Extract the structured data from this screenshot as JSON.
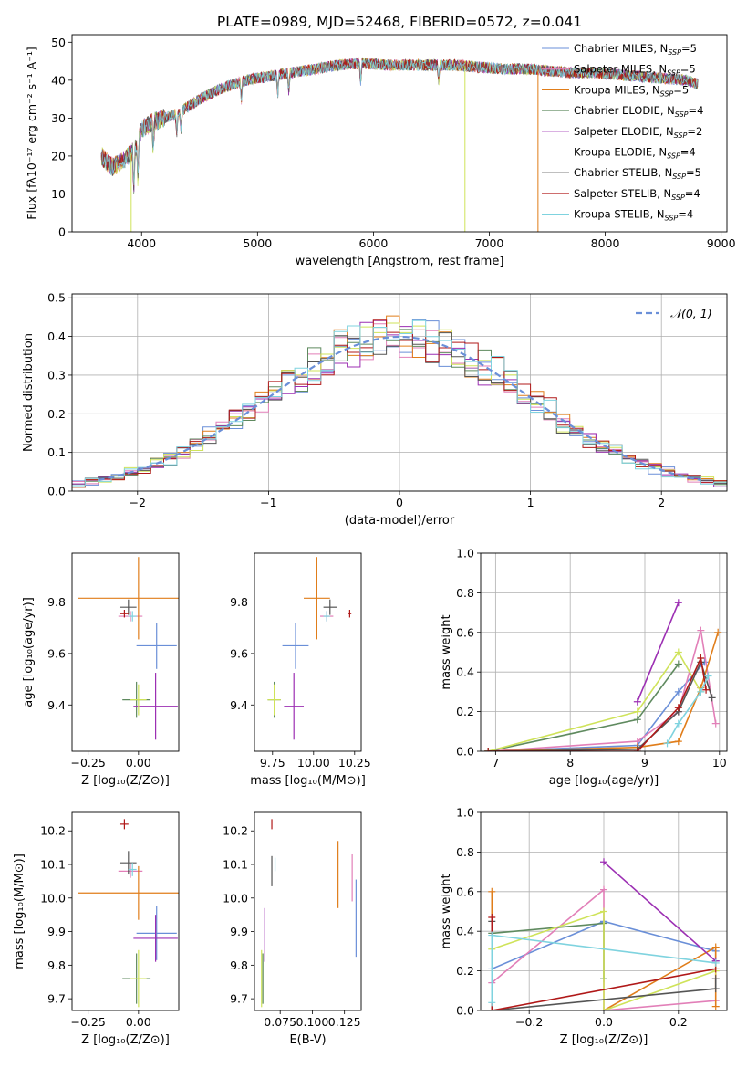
{
  "figure_title": "PLATE=0989, MJD=52468, FIBERID=0572, z=0.041",
  "colors": {
    "chabrier_miles": "#6a8fd8",
    "salpeter_miles": "#e27fb8",
    "kroupa_miles": "#e07d1a",
    "chabrier_elodie": "#5f8a5f",
    "salpeter_elodie": "#9c2fb3",
    "kroupa_elodie": "#cfe35a",
    "chabrier_stelib": "#555555",
    "salpeter_stelib": "#b01818",
    "kroupa_stelib": "#7fd3df",
    "normal": "#6a8fd8",
    "grid": "#b0b0b0"
  },
  "chart_data": [
    {
      "id": "spectrum",
      "type": "line",
      "xlabel": "wavelength [Angstrom, rest frame]",
      "ylabel": "Flux [fλ10⁻¹⁷ erg cm⁻² s⁻¹ A⁻¹]",
      "xlim": [
        3400,
        9050
      ],
      "ylim": [
        0,
        52
      ],
      "xticks": [
        4000,
        5000,
        6000,
        7000,
        8000,
        9000
      ],
      "yticks": [
        0,
        10,
        20,
        30,
        40,
        50
      ],
      "grid": false,
      "legend_loc": "upper right",
      "legend": [
        {
          "key": "chabrier_miles",
          "label": "Chabrier MILES, N",
          "sub": "SSP",
          "suffix": "=5"
        },
        {
          "key": "salpeter_miles",
          "label": "Salpeter MILES, N",
          "sub": "SSP",
          "suffix": "=5"
        },
        {
          "key": "kroupa_miles",
          "label": "Kroupa MILES, N",
          "sub": "SSP",
          "suffix": "=5"
        },
        {
          "key": "chabrier_elodie",
          "label": "Chabrier ELODIE, N",
          "sub": "SSP",
          "suffix": "=4"
        },
        {
          "key": "salpeter_elodie",
          "label": "Salpeter ELODIE, N",
          "sub": "SSP",
          "suffix": "=2"
        },
        {
          "key": "kroupa_elodie",
          "label": "Kroupa ELODIE, N",
          "sub": "SSP",
          "suffix": "=4"
        },
        {
          "key": "chabrier_stelib",
          "label": "Chabrier STELIB, N",
          "sub": "SSP",
          "suffix": "=5"
        },
        {
          "key": "salpeter_stelib",
          "label": "Salpeter STELIB, N",
          "sub": "SSP",
          "suffix": "=4"
        },
        {
          "key": "kroupa_stelib",
          "label": "Kroupa STELIB, N",
          "sub": "SSP",
          "suffix": "=4"
        }
      ],
      "continuum": {
        "x": [
          3650,
          3750,
          3850,
          3950,
          4000,
          4100,
          4200,
          4300,
          4400,
          4500,
          4700,
          4900,
          5100,
          5300,
          5500,
          5700,
          5900,
          6100,
          6300,
          6500,
          6700,
          6900,
          7100,
          7300,
          7500,
          7700,
          7900,
          8100,
          8300,
          8500,
          8700,
          8800
        ],
        "y": [
          20,
          17,
          19,
          22,
          27,
          29,
          30,
          31,
          33,
          35,
          38,
          40,
          41,
          42,
          43,
          44,
          44.5,
          44,
          44,
          44,
          44,
          43.5,
          43,
          43,
          42.5,
          42,
          42,
          41.5,
          41,
          40.5,
          40,
          39
        ]
      },
      "dropouts": [
        {
          "key": "kroupa_elodie",
          "x": 3910,
          "to": 0
        },
        {
          "key": "kroupa_elodie",
          "x": 6790,
          "to": 0
        },
        {
          "key": "kroupa_miles",
          "x": 7420,
          "to": 0
        }
      ]
    },
    {
      "id": "residuals",
      "type": "line",
      "xlabel": "(data-model)/error",
      "ylabel": "Normed distribution",
      "xlim": [
        -2.5,
        2.5
      ],
      "ylim": [
        0,
        0.51
      ],
      "xticks": [
        -2,
        -1,
        0,
        1,
        2
      ],
      "xticklabels": [
        "−2",
        "−1",
        "0",
        "1",
        "2"
      ],
      "yticks": [
        0,
        0.1,
        0.2,
        0.3,
        0.4,
        0.5
      ],
      "yticklabels": [
        "0.0",
        "0.1",
        "0.2",
        "0.3",
        "0.4",
        "0.5"
      ],
      "grid": true,
      "legend_loc": "upper right",
      "legend_label": "𝒩(0, 1)",
      "bin_width": 0.1,
      "n_series": 9
    },
    {
      "id": "z_age",
      "type": "scatter",
      "xlabel": "Z [log₁₀(Z/Z⊙)]",
      "ylabel": "age  [log₁₀(age/yr)]",
      "xlim": [
        -0.33,
        0.2
      ],
      "ylim": [
        9.22,
        9.99
      ],
      "xticks": [
        -0.25,
        0.0
      ],
      "xticklabels": [
        "−0.25",
        "0.00"
      ],
      "yticks": [
        9.4,
        9.6,
        9.8
      ],
      "yticklabels": [
        "9.4",
        "9.6",
        "9.8"
      ],
      "points": [
        {
          "key": "chabrier_miles",
          "x": 0.09,
          "y": 9.63,
          "xerr": 0.1,
          "yerr": 0.09
        },
        {
          "key": "salpeter_miles",
          "x": -0.04,
          "y": 9.745,
          "xerr": 0.06,
          "yerr": 0.02
        },
        {
          "key": "kroupa_miles",
          "x": 0.0,
          "y": 9.815,
          "xerr": 0.3,
          "yerr": 0.16
        },
        {
          "key": "chabrier_elodie",
          "x": -0.01,
          "y": 9.42,
          "xerr": 0.07,
          "yerr": 0.07
        },
        {
          "key": "salpeter_elodie",
          "x": 0.085,
          "y": 9.395,
          "xerr": 0.11,
          "yerr": 0.13
        },
        {
          "key": "kroupa_elodie",
          "x": 0.0,
          "y": 9.42,
          "xerr": 0.04,
          "yerr": 0.06
        },
        {
          "key": "chabrier_stelib",
          "x": -0.05,
          "y": 9.78,
          "xerr": 0.04,
          "yerr": 0.03
        },
        {
          "key": "salpeter_stelib",
          "x": -0.07,
          "y": 9.755,
          "xerr": 0.02,
          "yerr": 0.015
        },
        {
          "key": "kroupa_stelib",
          "x": -0.03,
          "y": 9.745,
          "xerr": 0.02,
          "yerr": 0.02
        }
      ]
    },
    {
      "id": "mass_age",
      "type": "scatter",
      "xlabel": "mass [log₁₀(M/M⊙)]",
      "ylabel": "",
      "xlim": [
        9.64,
        10.29
      ],
      "ylim": [
        9.22,
        9.99
      ],
      "xticks": [
        9.75,
        10.0,
        10.25
      ],
      "xticklabels": [
        "9.75",
        "10.00",
        "10.25"
      ],
      "yticks": [
        9.4,
        9.6,
        9.8
      ],
      "yticklabels": [
        "9.4",
        "9.6",
        "9.8"
      ],
      "points": [
        {
          "key": "chabrier_miles",
          "x": 9.89,
          "y": 9.63,
          "xerr": 0.08,
          "yerr": 0.09
        },
        {
          "key": "salpeter_miles",
          "x": 10.08,
          "y": 9.745,
          "xerr": 0.04,
          "yerr": 0.02
        },
        {
          "key": "kroupa_miles",
          "x": 10.02,
          "y": 9.815,
          "xerr": 0.08,
          "yerr": 0.16
        },
        {
          "key": "chabrier_elodie",
          "x": 9.76,
          "y": 9.42,
          "xerr": 0.04,
          "yerr": 0.07
        },
        {
          "key": "salpeter_elodie",
          "x": 9.88,
          "y": 9.395,
          "xerr": 0.06,
          "yerr": 0.13
        },
        {
          "key": "kroupa_elodie",
          "x": 9.76,
          "y": 9.42,
          "xerr": 0.04,
          "yerr": 0.06
        },
        {
          "key": "chabrier_stelib",
          "x": 10.1,
          "y": 9.78,
          "xerr": 0.04,
          "yerr": 0.03
        },
        {
          "key": "salpeter_stelib",
          "x": 10.22,
          "y": 9.755,
          "xerr": 0.01,
          "yerr": 0.015
        },
        {
          "key": "kroupa_stelib",
          "x": 10.08,
          "y": 9.745,
          "xerr": 0.02,
          "yerr": 0.02
        }
      ]
    },
    {
      "id": "age_weight",
      "type": "line",
      "xlabel": "age  [log₁₀(age/yr)]",
      "ylabel": "mass weight",
      "xlim": [
        6.8,
        10.1
      ],
      "ylim": [
        0,
        1
      ],
      "xticks": [
        7,
        8,
        9,
        10
      ],
      "xticklabels": [
        "7",
        "8",
        "9",
        "10"
      ],
      "yticks": [
        0,
        0.2,
        0.4,
        0.6,
        0.8,
        1.0
      ],
      "yticklabels": [
        "0.0",
        "0.2",
        "0.4",
        "0.6",
        "0.8",
        "1.0"
      ],
      "grid": true,
      "series": [
        {
          "key": "chabrier_miles",
          "x": [
            6.9,
            8.9,
            9.45,
            9.8
          ],
          "y": [
            0.0,
            0.03,
            0.3,
            0.45
          ]
        },
        {
          "key": "salpeter_miles",
          "x": [
            6.9,
            8.9,
            9.45,
            9.75,
            9.95
          ],
          "y": [
            0.0,
            0.05,
            0.2,
            0.61,
            0.14
          ]
        },
        {
          "key": "kroupa_miles",
          "x": [
            6.9,
            8.9,
            9.45,
            9.75,
            9.98
          ],
          "y": [
            0.0,
            0.02,
            0.05,
            0.32,
            0.6
          ]
        },
        {
          "key": "chabrier_elodie",
          "x": [
            6.9,
            8.9,
            9.45
          ],
          "y": [
            0.0,
            0.16,
            0.44
          ]
        },
        {
          "key": "salpeter_elodie",
          "x": [
            8.9,
            9.45
          ],
          "y": [
            0.25,
            0.75
          ]
        },
        {
          "key": "kroupa_elodie",
          "x": [
            6.9,
            8.9,
            9.45,
            9.75
          ],
          "y": [
            0.0,
            0.2,
            0.5,
            0.3
          ]
        },
        {
          "key": "chabrier_stelib",
          "x": [
            6.9,
            8.9,
            9.45,
            9.75,
            9.9
          ],
          "y": [
            0.0,
            0.01,
            0.2,
            0.45,
            0.27
          ]
        },
        {
          "key": "salpeter_stelib",
          "x": [
            6.9,
            8.9,
            9.45,
            9.75,
            9.82
          ],
          "y": [
            0.0,
            0.0,
            0.22,
            0.47,
            0.31
          ]
        },
        {
          "key": "kroupa_stelib",
          "x": [
            9.3,
            9.45,
            9.75,
            9.85
          ],
          "y": [
            0.04,
            0.14,
            0.3,
            0.38
          ]
        }
      ]
    },
    {
      "id": "z_mass",
      "type": "scatter",
      "xlabel": "Z [log₁₀(Z/Z⊙)]",
      "ylabel": "mass [log₁₀(M/M⊙)]",
      "xlim": [
        -0.33,
        0.2
      ],
      "ylim": [
        9.665,
        10.255
      ],
      "xticks": [
        -0.25,
        0.0
      ],
      "xticklabels": [
        "−0.25",
        "0.00"
      ],
      "yticks": [
        9.7,
        9.8,
        9.9,
        10.0,
        10.1,
        10.2
      ],
      "yticklabels": [
        "9.7",
        "9.8",
        "9.9",
        "10.0",
        "10.1",
        "10.2"
      ],
      "points": [
        {
          "key": "chabrier_miles",
          "x": 0.09,
          "y": 9.895,
          "xerr": 0.1,
          "yerr": 0.08
        },
        {
          "key": "salpeter_miles",
          "x": -0.04,
          "y": 10.08,
          "xerr": 0.06,
          "yerr": 0.02
        },
        {
          "key": "kroupa_miles",
          "x": 0.0,
          "y": 10.015,
          "xerr": 0.3,
          "yerr": 0.08
        },
        {
          "key": "chabrier_elodie",
          "x": -0.01,
          "y": 9.76,
          "xerr": 0.07,
          "yerr": 0.075
        },
        {
          "key": "salpeter_elodie",
          "x": 0.085,
          "y": 9.88,
          "xerr": 0.11,
          "yerr": 0.07
        },
        {
          "key": "kroupa_elodie",
          "x": 0.0,
          "y": 9.76,
          "xerr": 0.04,
          "yerr": 0.085
        },
        {
          "key": "chabrier_stelib",
          "x": -0.05,
          "y": 10.105,
          "xerr": 0.04,
          "yerr": 0.035
        },
        {
          "key": "salpeter_stelib",
          "x": -0.07,
          "y": 10.22,
          "xerr": 0.02,
          "yerr": 0.015
        },
        {
          "key": "kroupa_stelib",
          "x": -0.03,
          "y": 10.085,
          "xerr": 0.02,
          "yerr": 0.02
        }
      ]
    },
    {
      "id": "ebv_mass",
      "type": "scatter",
      "xlabel": "E(B-V)",
      "ylabel": "",
      "xlim": [
        0.055,
        0.138
      ],
      "ylim": [
        9.665,
        10.255
      ],
      "xticks": [
        0.075,
        0.1,
        0.125
      ],
      "xticklabels": [
        "0.075",
        "0.100",
        "0.125"
      ],
      "yticks": [
        9.7,
        9.8,
        9.9,
        10.0,
        10.1,
        10.2
      ],
      "yticklabels": [
        "9.7",
        "9.8",
        "9.9",
        "10.0",
        "10.1",
        "10.2"
      ],
      "points": [
        {
          "key": "chabrier_miles",
          "x": 0.134,
          "y": 9.94,
          "xerr": 0.0,
          "yerr": 0.115
        },
        {
          "key": "salpeter_miles",
          "x": 0.131,
          "y": 10.06,
          "xerr": 0.0,
          "yerr": 0.07
        },
        {
          "key": "kroupa_miles",
          "x": 0.12,
          "y": 10.07,
          "xerr": 0.0,
          "yerr": 0.1
        },
        {
          "key": "chabrier_elodie",
          "x": 0.0615,
          "y": 9.76,
          "xerr": 0.0,
          "yerr": 0.075
        },
        {
          "key": "salpeter_elodie",
          "x": 0.063,
          "y": 9.89,
          "xerr": 0.0,
          "yerr": 0.08
        },
        {
          "key": "kroupa_elodie",
          "x": 0.0605,
          "y": 9.76,
          "xerr": 0.0,
          "yerr": 0.085
        },
        {
          "key": "chabrier_stelib",
          "x": 0.0685,
          "y": 10.08,
          "xerr": 0.0,
          "yerr": 0.045
        },
        {
          "key": "salpeter_stelib",
          "x": 0.0685,
          "y": 10.22,
          "xerr": 0.0,
          "yerr": 0.015
        },
        {
          "key": "kroupa_stelib",
          "x": 0.071,
          "y": 10.1,
          "xerr": 0.0,
          "yerr": 0.02
        }
      ]
    },
    {
      "id": "z_weight",
      "type": "line",
      "xlabel": "Z [log₁₀(Z/Z⊙)]",
      "ylabel": "mass weight",
      "xlim": [
        -0.33,
        0.33
      ],
      "ylim": [
        0,
        1
      ],
      "xticks": [
        -0.2,
        0.0,
        0.2
      ],
      "xticklabels": [
        "−0.2",
        "0.0",
        "0.2"
      ],
      "yticks": [
        0,
        0.2,
        0.4,
        0.6,
        0.8,
        1.0
      ],
      "yticklabels": [
        "0.0",
        "0.2",
        "0.4",
        "0.6",
        "0.8",
        "1.0"
      ],
      "grid": true,
      "series": [
        {
          "key": "chabrier_miles",
          "x": [
            -0.3,
            -0.3,
            0.0,
            0.3,
            0.3
          ],
          "y": [
            0.0,
            0.21,
            0.45,
            0.3,
            0.25
          ]
        },
        {
          "key": "salpeter_miles",
          "x": [
            -0.3,
            0.0,
            0.0,
            0.3
          ],
          "y": [
            0.14,
            0.61,
            0.0,
            0.05
          ]
        },
        {
          "key": "kroupa_miles",
          "x": [
            -0.3,
            -0.3,
            0.0,
            0.3,
            0.3
          ],
          "y": [
            0.6,
            0.0,
            0.0,
            0.32,
            0.02
          ]
        },
        {
          "key": "chabrier_elodie",
          "x": [
            -0.3,
            0.0,
            0.0
          ],
          "y": [
            0.39,
            0.44,
            0.16
          ]
        },
        {
          "key": "salpeter_elodie",
          "x": [
            0.0,
            0.3
          ],
          "y": [
            0.75,
            0.25
          ]
        },
        {
          "key": "kroupa_elodie",
          "x": [
            -0.3,
            0.0,
            0.0,
            0.3
          ],
          "y": [
            0.31,
            0.5,
            0.0,
            0.2
          ]
        },
        {
          "key": "chabrier_stelib",
          "x": [
            -0.3,
            -0.3,
            0.3,
            0.3
          ],
          "y": [
            0.45,
            0.0,
            0.11,
            0.16
          ]
        },
        {
          "key": "salpeter_stelib",
          "x": [
            -0.3,
            -0.3,
            0.3
          ],
          "y": [
            0.47,
            0.0,
            0.21
          ]
        },
        {
          "key": "kroupa_stelib",
          "x": [
            -0.3,
            -0.3,
            0.3
          ],
          "y": [
            0.04,
            0.38,
            0.24
          ]
        }
      ]
    }
  ]
}
